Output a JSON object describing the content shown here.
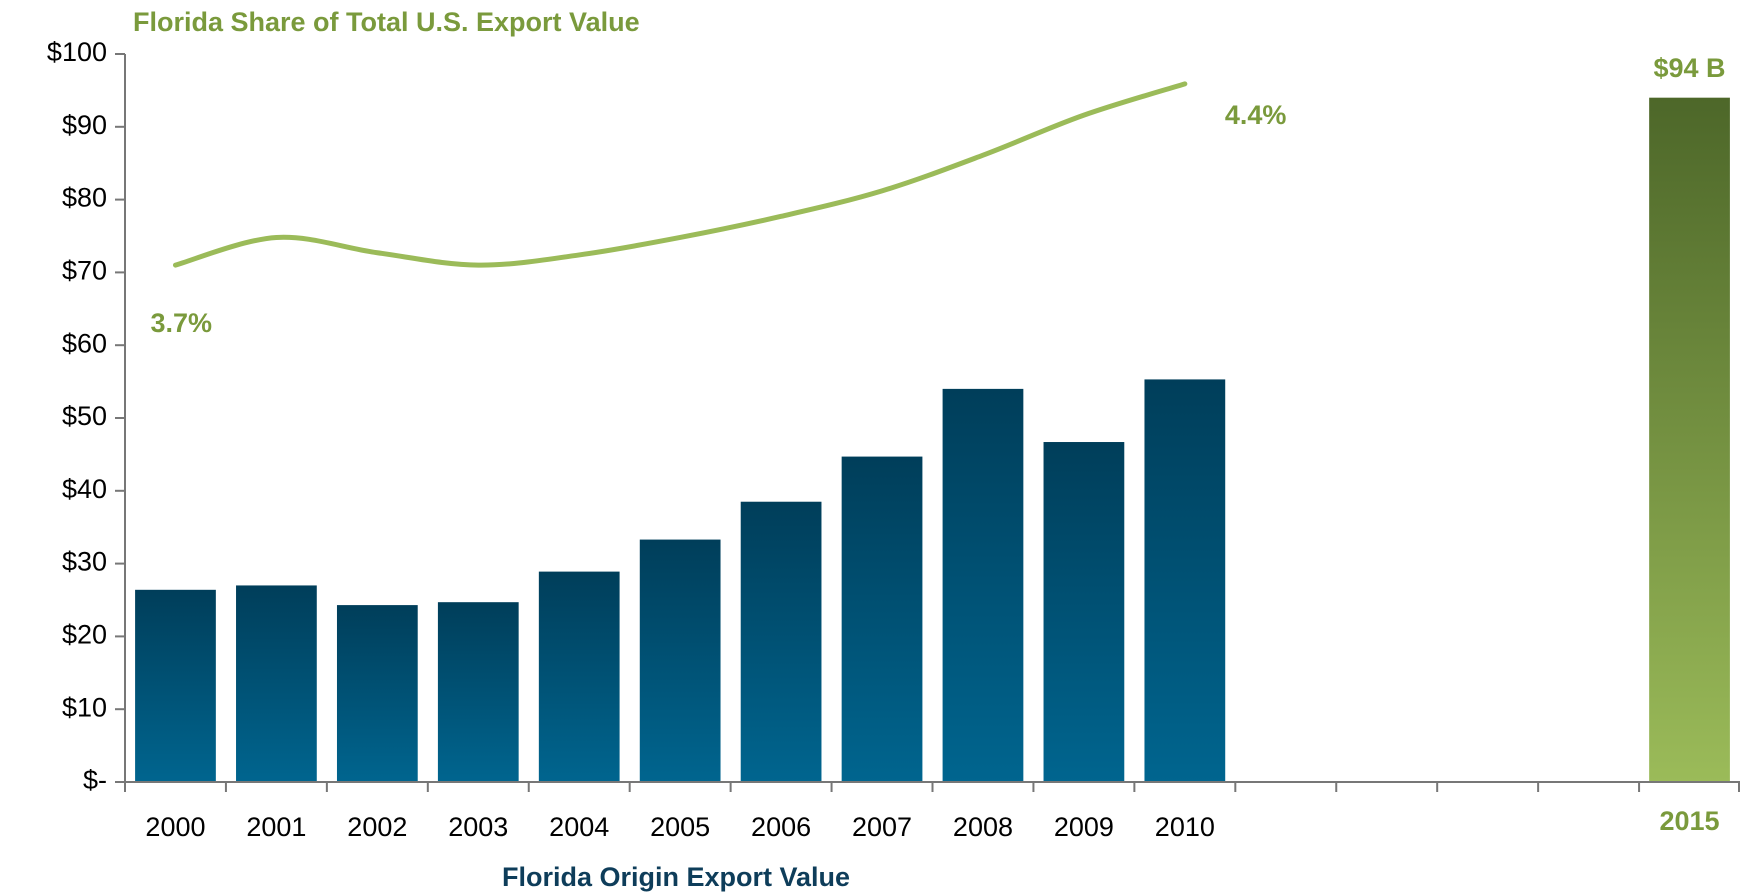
{
  "chart_data": {
    "type": "bar",
    "title": "Florida Share of Total U.S. Export Value",
    "x_label": "Florida Origin Export Value",
    "categories": [
      "2000",
      "2001",
      "2002",
      "2003",
      "2004",
      "2005",
      "2006",
      "2007",
      "2008",
      "2009",
      "2010",
      null,
      null,
      null,
      null,
      "2015"
    ],
    "values": [
      26.4,
      27.0,
      24.3,
      24.7,
      28.9,
      33.3,
      38.5,
      44.7,
      54.0,
      46.7,
      55.3,
      null,
      null,
      null,
      null,
      94
    ],
    "value_labels": [
      null,
      null,
      null,
      null,
      null,
      null,
      null,
      null,
      null,
      null,
      null,
      null,
      null,
      null,
      null,
      "$94 B"
    ],
    "colors": [
      "#00587f",
      "#00587f",
      "#00587f",
      "#00587f",
      "#00587f",
      "#00587f",
      "#00587f",
      "#00587f",
      "#00587f",
      "#00587f",
      "#00587f",
      null,
      null,
      null,
      null,
      "#7a9a3c"
    ],
    "ylim": [
      0,
      100
    ],
    "yticks": [
      {
        "value": 0,
        "label": "$-"
      },
      {
        "value": 10,
        "label": "$10"
      },
      {
        "value": 20,
        "label": "$20"
      },
      {
        "value": 30,
        "label": "$30"
      },
      {
        "value": 40,
        "label": "$40"
      },
      {
        "value": 50,
        "label": "$50"
      },
      {
        "value": 60,
        "label": "$60"
      },
      {
        "value": 70,
        "label": "$70"
      },
      {
        "value": 80,
        "label": "$80"
      },
      {
        "value": 90,
        "label": "$90"
      },
      {
        "value": 100,
        "label": "$100"
      }
    ],
    "line": {
      "type": "line",
      "color": "#9bbb59",
      "values": [
        71.0,
        74.8,
        72.7,
        71.0,
        72.4,
        74.8,
        77.7,
        81.2,
        86.1,
        91.6,
        95.9,
        null,
        null,
        null,
        null,
        null
      ],
      "annotations": [
        "3.7%",
        "4.4%"
      ]
    }
  }
}
